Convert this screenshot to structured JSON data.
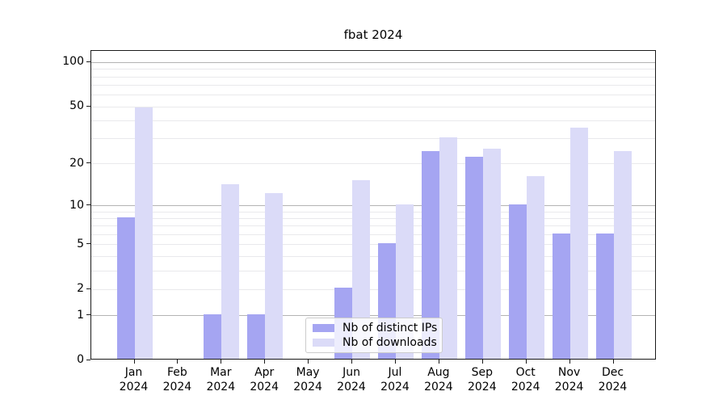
{
  "chart_data": {
    "type": "bar",
    "title": "fbat 2024",
    "categories": [
      "Jan 2024",
      "Feb 2024",
      "Mar 2024",
      "Apr 2024",
      "May 2024",
      "Jun 2024",
      "Jul 2024",
      "Aug 2024",
      "Sep 2024",
      "Oct 2024",
      "Nov 2024",
      "Dec 2024"
    ],
    "series": [
      {
        "name": "Nb of distinct IPs",
        "color": "#a5a5f2",
        "values": [
          8,
          0,
          1,
          1,
          0,
          2,
          5,
          24,
          22,
          10,
          6,
          6
        ]
      },
      {
        "name": "Nb of downloads",
        "color": "#dbdbf8",
        "values": [
          48,
          0,
          14,
          12,
          0,
          15,
          10,
          30,
          25,
          16,
          35,
          24
        ]
      }
    ],
    "xlabel": "",
    "ylabel": "",
    "yscale": "log1p",
    "ylim": [
      0,
      120
    ],
    "y_tick_labels": [
      "100",
      "50",
      "20",
      "10",
      "5",
      "2",
      "1",
      "0"
    ],
    "y_tick_values": [
      100,
      50,
      20,
      10,
      5,
      2,
      1,
      0
    ],
    "gridlines_dark": [
      1,
      10,
      100
    ],
    "gridlines_light": [
      2,
      5,
      20,
      50,
      3,
      4,
      6,
      7,
      8,
      9,
      30,
      40,
      60,
      70,
      80,
      90
    ],
    "grid": true,
    "legend_position": "lower-center-inside",
    "colors": {
      "axis": "#1a1a1a",
      "grid_dark": "#b3b3b3",
      "grid_light": "#e9e9ec",
      "background": "#ffffff"
    }
  }
}
